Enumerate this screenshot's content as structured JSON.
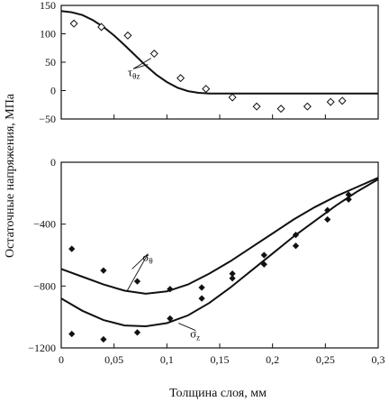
{
  "chart_data": [
    {
      "type": "scatter",
      "title": "",
      "xlim": [
        0,
        0.3
      ],
      "ylim": [
        -50,
        150
      ],
      "y_ticks": [
        150,
        100,
        50,
        0,
        -50
      ],
      "y_tick_labels": [
        "150",
        "100",
        "50",
        "0",
        "−50"
      ],
      "series": [
        {
          "kind": "line",
          "x": [
            0,
            0.01,
            0.02,
            0.03,
            0.04,
            0.05,
            0.06,
            0.07,
            0.08,
            0.09,
            0.1,
            0.11,
            0.12,
            0.13,
            0.14,
            0.15,
            0.16,
            0.17,
            0.18,
            0.19,
            0.2,
            0.22,
            0.24,
            0.26,
            0.28,
            0.3
          ],
          "y": [
            140,
            138,
            133,
            124,
            112,
            97,
            80,
            62,
            44,
            28,
            15,
            5,
            -1,
            -4,
            -5,
            -5,
            -5,
            -5,
            -5,
            -5,
            -5,
            -5,
            -5,
            -5,
            -5,
            -5
          ]
        },
        {
          "kind": "points",
          "marker": "open-diamond",
          "x": [
            0.012,
            0.038,
            0.063,
            0.088,
            0.113,
            0.137,
            0.162,
            0.185,
            0.208,
            0.233,
            0.255,
            0.266
          ],
          "y": [
            118,
            112,
            97,
            65,
            22,
            3,
            -12,
            -28,
            -32,
            -28,
            -20,
            -18
          ]
        }
      ],
      "annotations": [
        {
          "text": "τ",
          "subscript": "θz",
          "x": 0.063,
          "y": 32,
          "to": [
            [
              0.082,
              46
            ],
            [
              0.085,
              57
            ]
          ]
        }
      ]
    },
    {
      "type": "scatter",
      "title": "",
      "xlim": [
        0,
        0.3
      ],
      "ylim": [
        -1200,
        0
      ],
      "x_ticks": [
        0,
        0.05,
        0.1,
        0.15,
        0.2,
        0.25,
        0.3
      ],
      "x_tick_labels": [
        "0",
        "0,05",
        "0,1",
        "0,15",
        "0,2",
        "0,25",
        "0,3"
      ],
      "y_ticks": [
        0,
        -400,
        -800,
        -1200
      ],
      "y_tick_labels": [
        "0",
        "−400",
        "−800",
        "−1200"
      ],
      "series": [
        {
          "kind": "line",
          "x": [
            0,
            0.02,
            0.04,
            0.06,
            0.08,
            0.1,
            0.12,
            0.14,
            0.16,
            0.18,
            0.2,
            0.22,
            0.24,
            0.26,
            0.28,
            0.3
          ],
          "y": [
            -690,
            -740,
            -790,
            -830,
            -850,
            -835,
            -790,
            -720,
            -640,
            -550,
            -460,
            -370,
            -290,
            -220,
            -160,
            -100
          ]
        },
        {
          "kind": "line",
          "x": [
            0,
            0.02,
            0.04,
            0.06,
            0.08,
            0.1,
            0.12,
            0.14,
            0.16,
            0.18,
            0.2,
            0.22,
            0.24,
            0.26,
            0.28,
            0.3
          ],
          "y": [
            -880,
            -960,
            -1020,
            -1055,
            -1060,
            -1040,
            -990,
            -910,
            -810,
            -700,
            -590,
            -480,
            -380,
            -280,
            -190,
            -110
          ]
        },
        {
          "kind": "points",
          "marker": "filled-diamond",
          "x": [
            0.01,
            0.01,
            0.04,
            0.04,
            0.072,
            0.072,
            0.103,
            0.103,
            0.133,
            0.133,
            0.162,
            0.162,
            0.192,
            0.192,
            0.222,
            0.222,
            0.252,
            0.252,
            0.272,
            0.272
          ],
          "y": [
            -560,
            -1110,
            -700,
            -1145,
            -770,
            -1100,
            -820,
            -1010,
            -810,
            -880,
            -720,
            -750,
            -600,
            -660,
            -470,
            -540,
            -310,
            -370,
            -210,
            -240
          ]
        }
      ],
      "annotations": [
        {
          "text": "σ",
          "subscript": "θ",
          "x": 0.077,
          "y": -615,
          "to": [
            [
              0.067,
              -690
            ],
            [
              0.062,
              -835
            ]
          ]
        },
        {
          "text": "σ",
          "subscript": "z",
          "x": 0.122,
          "y": -1110,
          "to": [
            [
              0.111,
              -1040
            ]
          ]
        }
      ]
    }
  ],
  "xlabel": "Толщина слоя, мм",
  "ylabel": "Остаточные напряжения, МПа"
}
